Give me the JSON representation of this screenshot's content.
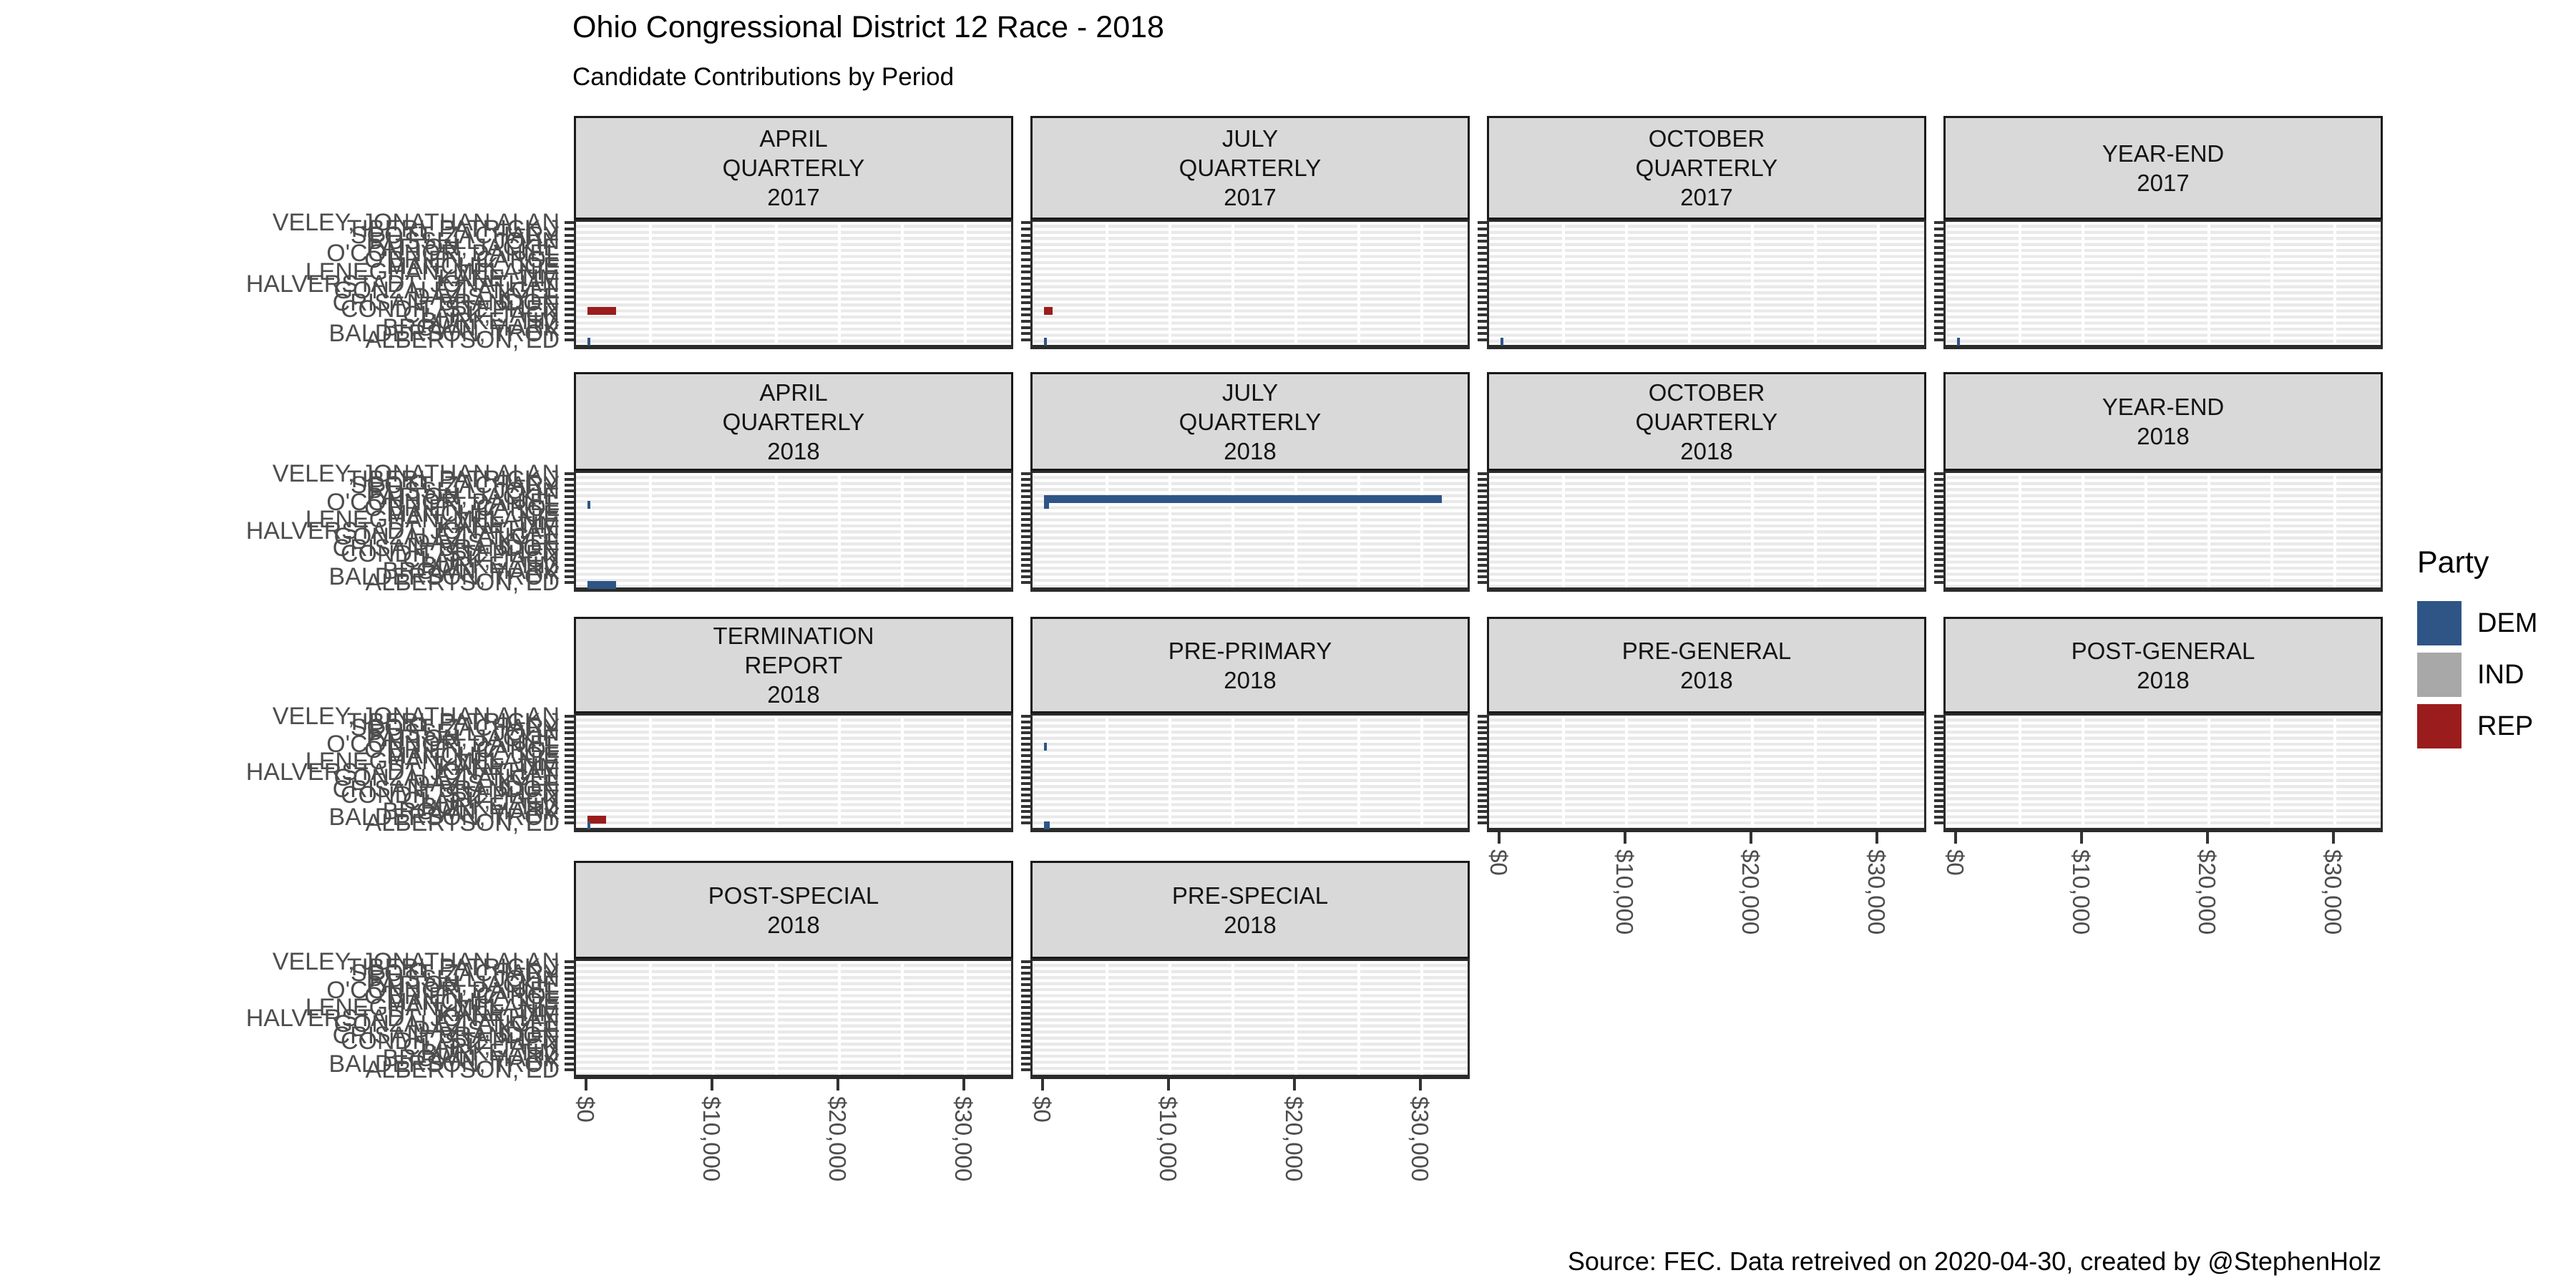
{
  "title": "Ohio Congressional District 12 Race - 2018",
  "subtitle": "Candidate Contributions by Period",
  "caption": "Source: FEC. Data retreived on 2020-04-30, created by @StephenHolz",
  "legend": {
    "title": "Party",
    "entries": [
      {
        "label": "DEM",
        "color": "#2E5586"
      },
      {
        "label": "IND",
        "color": "#A8A8A8"
      },
      {
        "label": "REP",
        "color": "#9B1C1C"
      }
    ]
  },
  "chart_data": {
    "type": "bar",
    "orientation": "horizontal",
    "title": "Ohio Congressional District 12 Race - 2018",
    "subtitle": "Candidate Contributions by Period",
    "xlabel": "",
    "ylabel": "",
    "xlim": [
      0,
      34000
    ],
    "x_tick_values": [
      0,
      10000,
      20000,
      30000
    ],
    "x_tick_labels": [
      "$0",
      "$10,000",
      "$20,000",
      "$30,000"
    ],
    "grid": "horizontal-stripes-with-light-vertical-lines",
    "legend_position": "right",
    "party_colors": {
      "DEM": "#2E5586",
      "IND": "#A8A8A8",
      "REP": "#9B1C1C"
    },
    "y_categories_top_to_bottom": [
      "VELEY, JONATHAN ALAN",
      "TIBERI, PATRICK J",
      "SCOTT, ZACHARY",
      "RUSSELL, JOHN",
      "PATTON, JACKIE",
      "O'CONNOR, DANIEL",
      "O'BRIEN, CAROL",
      "MANCHIK, JOE",
      "LENEGHAN, MELANIE",
      "KANE, TIM",
      "HALVERSTADT, JONATHAN",
      "GONZALEZ, ANGEL",
      "DAVIS, KYLE",
      "CRISAN, BRANDON",
      "CONDIT, STEPHEN",
      "CLARK, JACK",
      "BURKE, TIM",
      "BROWN, MARK",
      "BALDERSON, TROY",
      "ALBERTSON, ED"
    ],
    "facets": [
      {
        "row": 1,
        "col": 1,
        "label_lines": [
          "APRIL",
          "QUARTERLY",
          "2017"
        ],
        "bars": [
          {
            "row_from_top": 15,
            "party": "REP",
            "value": 2300
          },
          {
            "row_from_top": 20,
            "party": "DEM",
            "value": 150
          }
        ]
      },
      {
        "row": 1,
        "col": 2,
        "label_lines": [
          "JULY",
          "QUARTERLY",
          "2017"
        ],
        "bars": [
          {
            "row_from_top": 15,
            "party": "REP",
            "value": 700
          },
          {
            "row_from_top": 20,
            "party": "DEM",
            "value": 120
          }
        ]
      },
      {
        "row": 1,
        "col": 3,
        "label_lines": [
          "OCTOBER",
          "QUARTERLY",
          "2017"
        ],
        "bars": [
          {
            "row_from_top": 20,
            "party": "DEM",
            "value": 100
          }
        ]
      },
      {
        "row": 1,
        "col": 4,
        "label_lines": [
          "YEAR-END",
          "2017"
        ],
        "bars": [
          {
            "row_from_top": 20,
            "party": "DEM",
            "value": 100
          }
        ]
      },
      {
        "row": 2,
        "col": 1,
        "label_lines": [
          "APRIL",
          "QUARTERLY",
          "2018"
        ],
        "bars": [
          {
            "row_from_top": 6,
            "party": "DEM",
            "value": 250
          },
          {
            "row_from_top": 20,
            "party": "DEM",
            "value": 2300
          }
        ]
      },
      {
        "row": 2,
        "col": 2,
        "label_lines": [
          "JULY",
          "QUARTERLY",
          "2018"
        ],
        "bars": [
          {
            "row_from_top": 5,
            "party": "DEM",
            "value": 31600
          },
          {
            "row_from_top": 6,
            "party": "DEM",
            "value": 400
          }
        ]
      },
      {
        "row": 2,
        "col": 3,
        "label_lines": [
          "OCTOBER",
          "QUARTERLY",
          "2018"
        ],
        "bars": []
      },
      {
        "row": 2,
        "col": 4,
        "label_lines": [
          "YEAR-END",
          "2018"
        ],
        "bars": []
      },
      {
        "row": 3,
        "col": 1,
        "label_lines": [
          "TERMINATION",
          "REPORT",
          "2018"
        ],
        "bars": [
          {
            "row_from_top": 19,
            "party": "REP",
            "value": 1500
          },
          {
            "row_from_top": 20,
            "party": "DEM",
            "value": 150
          }
        ]
      },
      {
        "row": 3,
        "col": 2,
        "label_lines": [
          "PRE-PRIMARY",
          "2018"
        ],
        "bars": [
          {
            "row_from_top": 6,
            "party": "DEM",
            "value": 200
          },
          {
            "row_from_top": 20,
            "party": "DEM",
            "value": 450
          }
        ]
      },
      {
        "row": 3,
        "col": 3,
        "label_lines": [
          "PRE-GENERAL",
          "2018"
        ],
        "bars": []
      },
      {
        "row": 3,
        "col": 4,
        "label_lines": [
          "POST-GENERAL",
          "2018"
        ],
        "bars": []
      },
      {
        "row": 4,
        "col": 1,
        "label_lines": [
          "POST-SPECIAL",
          "2018"
        ],
        "bars": []
      },
      {
        "row": 4,
        "col": 2,
        "label_lines": [
          "PRE-SPECIAL",
          "2018"
        ],
        "bars": []
      }
    ]
  }
}
